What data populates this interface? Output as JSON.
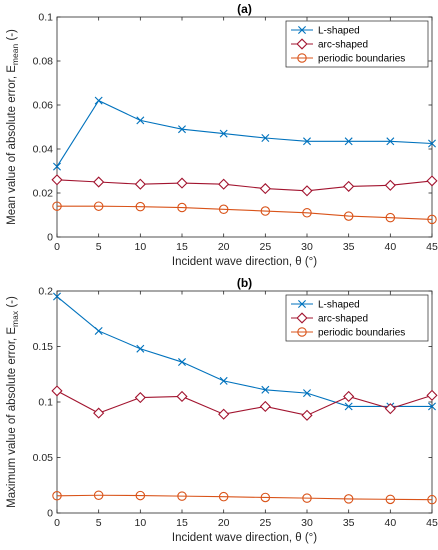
{
  "chart_data": [
    {
      "type": "line",
      "title": "(a)",
      "xlabel": "Incident wave direction, θ (°)",
      "ylabel": "Mean value of absolute error, E",
      "ylabel_sub": "mean",
      "ylabel_unit": " (-)",
      "x": [
        0,
        5,
        10,
        15,
        20,
        25,
        30,
        35,
        40,
        45
      ],
      "xticks": [
        "0",
        "5",
        "10",
        "15",
        "20",
        "25",
        "30",
        "35",
        "40",
        "45"
      ],
      "yticks": [
        "0",
        "0.02",
        "0.04",
        "0.06",
        "0.08",
        "0.1"
      ],
      "ylim": [
        0,
        0.1
      ],
      "xlim": [
        0,
        45
      ],
      "grid": false,
      "legend_position": "top-right",
      "series": [
        {
          "name": "L-shaped",
          "marker": "x",
          "color": "#0072BD",
          "values": [
            0.032,
            0.062,
            0.053,
            0.049,
            0.047,
            0.045,
            0.0435,
            0.0435,
            0.0435,
            0.0425
          ]
        },
        {
          "name": "arc-shaped",
          "marker": "diamond",
          "color": "#A2142F",
          "values": [
            0.026,
            0.025,
            0.024,
            0.0245,
            0.024,
            0.022,
            0.021,
            0.023,
            0.0235,
            0.0255
          ]
        },
        {
          "name": "periodic boundaries",
          "marker": "circle",
          "color": "#D95319",
          "values": [
            0.014,
            0.014,
            0.0138,
            0.0134,
            0.0126,
            0.0118,
            0.011,
            0.0095,
            0.0088,
            0.008
          ]
        }
      ]
    },
    {
      "type": "line",
      "title": "(b)",
      "xlabel": "Incident wave direction, θ (°)",
      "ylabel": "Maximum value of absolute error, E",
      "ylabel_sub": "max",
      "ylabel_unit": " (-)",
      "x": [
        0,
        5,
        10,
        15,
        20,
        25,
        30,
        35,
        40,
        45
      ],
      "xticks": [
        "0",
        "5",
        "10",
        "15",
        "20",
        "25",
        "30",
        "35",
        "40",
        "45"
      ],
      "yticks": [
        "0",
        "0.05",
        "0.1",
        "0.15",
        "0.2"
      ],
      "ylim": [
        0,
        0.2
      ],
      "xlim": [
        0,
        45
      ],
      "grid": false,
      "legend_position": "top-right",
      "series": [
        {
          "name": "L-shaped",
          "marker": "x",
          "color": "#0072BD",
          "values": [
            0.195,
            0.164,
            0.148,
            0.136,
            0.119,
            0.111,
            0.108,
            0.096,
            0.096,
            0.096
          ]
        },
        {
          "name": "arc-shaped",
          "marker": "diamond",
          "color": "#A2142F",
          "values": [
            0.11,
            0.09,
            0.104,
            0.105,
            0.089,
            0.096,
            0.088,
            0.105,
            0.094,
            0.106
          ]
        },
        {
          "name": "periodic boundaries",
          "marker": "circle",
          "color": "#D95319",
          "values": [
            0.0155,
            0.016,
            0.0157,
            0.0152,
            0.0147,
            0.014,
            0.0134,
            0.0127,
            0.0123,
            0.012
          ]
        }
      ]
    }
  ]
}
